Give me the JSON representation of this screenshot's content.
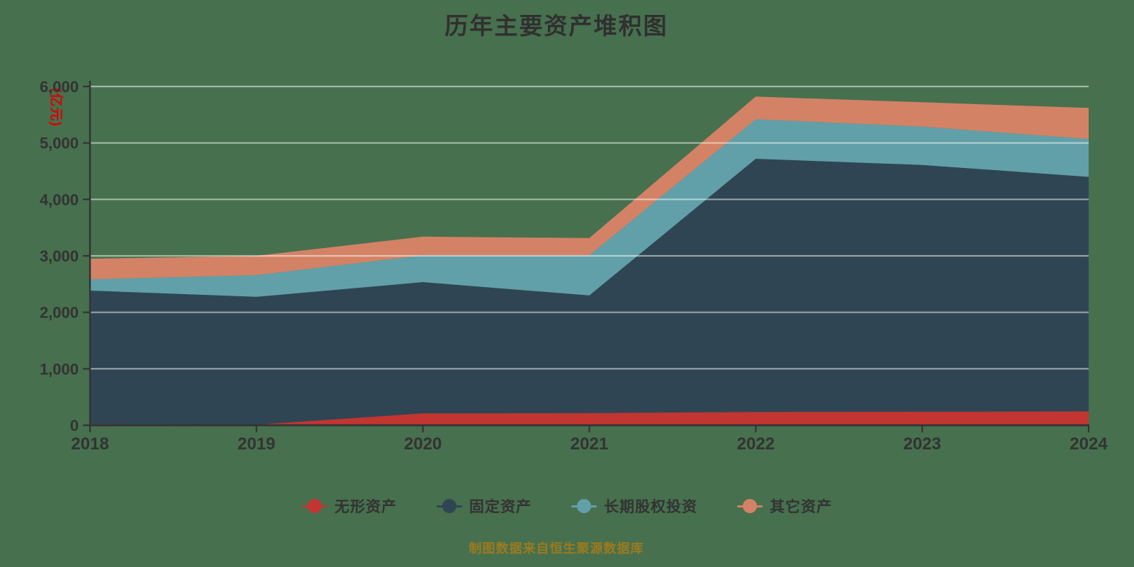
{
  "title": "历年主要资产堆积图",
  "y_axis": {
    "unit_label": "(亿元)",
    "ticks": [
      "0",
      "1,000",
      "2,000",
      "3,000",
      "4,000",
      "5,000",
      "6,000"
    ],
    "min": 0,
    "max": 6000
  },
  "x_axis": {
    "categories": [
      "2018",
      "2019",
      "2020",
      "2021",
      "2022",
      "2023",
      "2024"
    ]
  },
  "chart_data": {
    "type": "area",
    "stacked": true,
    "title": "历年主要资产堆积图",
    "categories": [
      "2018",
      "2019",
      "2020",
      "2021",
      "2022",
      "2023",
      "2024"
    ],
    "series": [
      {
        "id": "intangible-assets",
        "name": "无形资产",
        "color": "#c23531",
        "values": [
          20,
          10,
          210,
          215,
          235,
          240,
          245
        ]
      },
      {
        "id": "fixed-assets",
        "name": "固定资产",
        "color": "#2f4554",
        "values": [
          2365,
          2265,
          2325,
          2085,
          4485,
          4370,
          4155
        ]
      },
      {
        "id": "long-term-equity",
        "name": "长期股权投资",
        "color": "#61a0a8",
        "values": [
          200,
          385,
          475,
          710,
          700,
          680,
          670
        ]
      },
      {
        "id": "other-assets",
        "name": "其它资产",
        "color": "#d48265",
        "values": [
          365,
          340,
          330,
          305,
          400,
          430,
          550
        ]
      }
    ],
    "ylabel": "(亿元)",
    "xlabel": "",
    "ylim": [
      0,
      6000
    ],
    "grid": true,
    "legend_position": "bottom"
  },
  "legend": {
    "items": [
      {
        "label": "无形资产",
        "color": "#c23531"
      },
      {
        "label": "固定资产",
        "color": "#2f4554"
      },
      {
        "label": "长期股权投资",
        "color": "#61a0a8"
      },
      {
        "label": "其它资产",
        "color": "#d48265"
      }
    ]
  },
  "footer": {
    "caption": "制图数据来自恒生聚源数据库"
  },
  "colors": {
    "background": "#47704e",
    "axis": "#333333",
    "tick_label": "#333333",
    "gridline": "rgba(255,255,255,0.5)",
    "title": "#303030",
    "unit_label": "#dd0000",
    "caption": "#9c7a1e"
  }
}
